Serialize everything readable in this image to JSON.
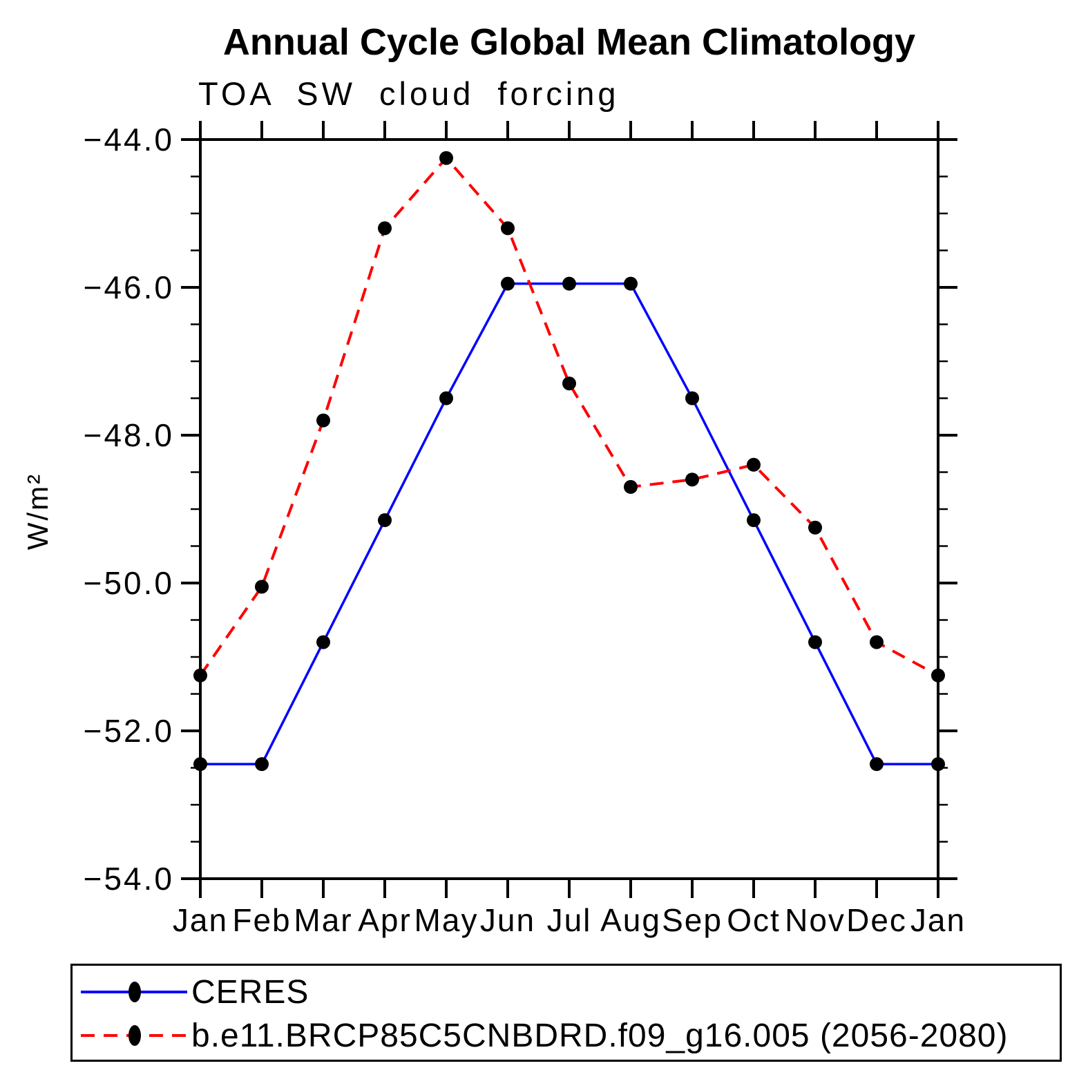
{
  "chart_data": {
    "type": "line",
    "title": "Annual Cycle Global Mean Climatology",
    "subtitle": "TOA SW cloud forcing",
    "ylabel": "W/m²",
    "xlabel": "",
    "categories": [
      "Jan",
      "Feb",
      "Mar",
      "Apr",
      "May",
      "Jun",
      "Jul",
      "Aug",
      "Sep",
      "Oct",
      "Nov",
      "Dec",
      "Jan"
    ],
    "ylim": [
      -54.0,
      -44.0
    ],
    "ytick_values": [
      -44.0,
      -46.0,
      -48.0,
      -50.0,
      -52.0,
      -54.0
    ],
    "ytick_labels": [
      "−44.0",
      "−46.0",
      "−48.0",
      "−50.0",
      "−52.0",
      "−54.0"
    ],
    "yminor_step": 0.5,
    "grid": false,
    "legend_position": "bottom-box",
    "axis_color": "#000000",
    "series": [
      {
        "name": "CERES",
        "line_style": "solid",
        "line_color": "#0000ff",
        "marker": "filled-circle",
        "marker_color": "#000000",
        "values": [
          -52.45,
          -52.45,
          -50.8,
          -49.15,
          -47.5,
          -45.95,
          -45.95,
          -45.95,
          -47.5,
          -49.15,
          -50.8,
          -52.45,
          -52.45
        ]
      },
      {
        "name": "b.e11.BRCP85C5CNBDRD.f09_g16.005 (2056-2080)",
        "line_style": "dashed",
        "line_color": "#ff0000",
        "marker": "filled-circle",
        "marker_color": "#000000",
        "values": [
          -51.25,
          -50.05,
          -47.8,
          -45.2,
          -44.25,
          -45.2,
          -47.3,
          -48.7,
          -48.6,
          -48.4,
          -49.25,
          -50.8,
          -51.25
        ]
      }
    ]
  }
}
